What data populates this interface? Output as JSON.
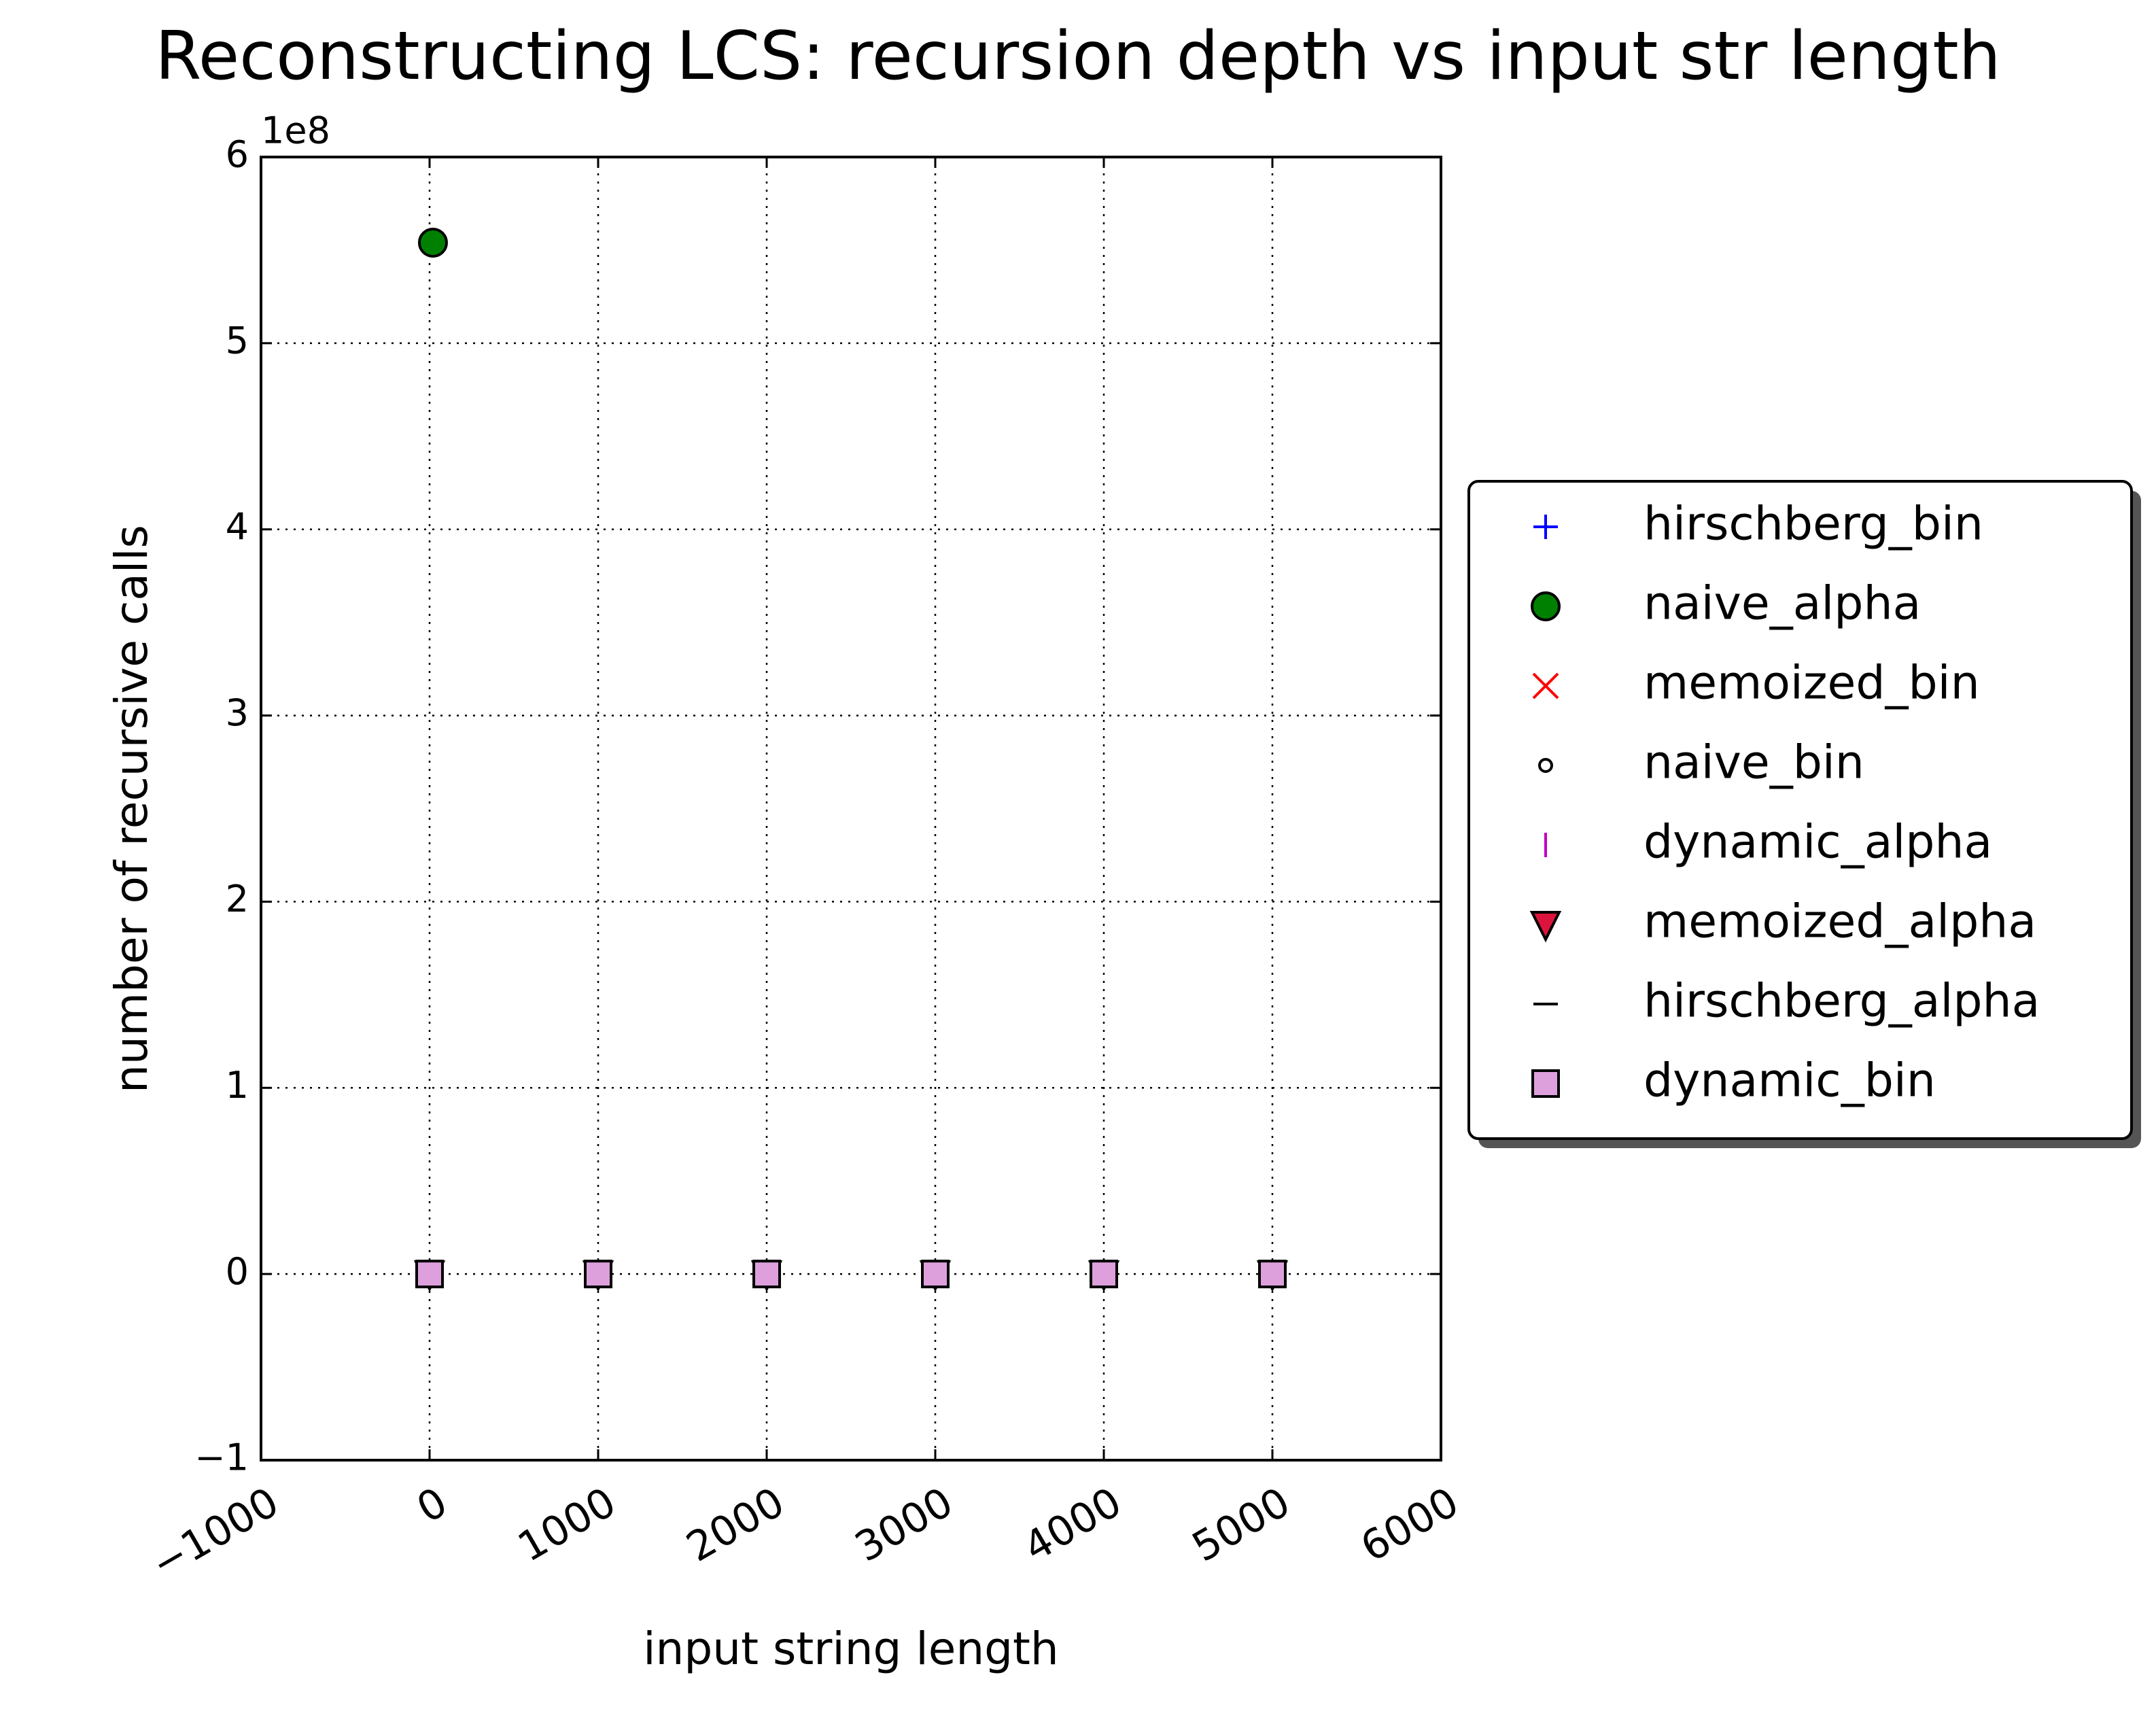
{
  "chart_data": {
    "type": "scatter",
    "title": "Reconstructing LCS: recursion depth vs input str length",
    "x_label": "input string length",
    "y_label": "number of recursive calls",
    "y_offset_label": "1e8",
    "xlim": [
      -1000,
      6000
    ],
    "ylim": [
      -1,
      6
    ],
    "xticks": [
      {
        "value": -1000,
        "label": "−1000"
      },
      0,
      1000,
      2000,
      3000,
      4000,
      5000,
      6000
    ],
    "yticks": [
      {
        "value": -1,
        "label": "−1"
      },
      0,
      1,
      2,
      3,
      4,
      5,
      6
    ],
    "grid": true,
    "legend": "right",
    "series": [
      {
        "name": "hirschberg_bin",
        "color": "#0000ff",
        "marker": "plus",
        "x": [
          0,
          1000,
          2000,
          3000,
          4000,
          5000
        ],
        "values": [
          0,
          0,
          0,
          0,
          0,
          0
        ]
      },
      {
        "name": "naive_alpha",
        "color": "#008000",
        "marker": "circle",
        "x": [
          20
        ],
        "values": [
          5.54
        ]
      },
      {
        "name": "memoized_bin",
        "color": "#ff0000",
        "marker": "x",
        "x": [
          0,
          1000,
          2000,
          3000,
          4000,
          5000
        ],
        "values": [
          0,
          0,
          0,
          0,
          0,
          0
        ]
      },
      {
        "name": "naive_bin",
        "color": "#ffffff",
        "marker": "small-circle",
        "x": [
          20
        ],
        "values": [
          0
        ]
      },
      {
        "name": "dynamic_alpha",
        "color": "#bf00bf",
        "marker": "vline",
        "x": [
          0,
          1000,
          2000,
          3000,
          4000,
          5000
        ],
        "values": [
          0,
          0,
          0,
          0,
          0,
          0
        ]
      },
      {
        "name": "memoized_alpha",
        "color": "#dc143c",
        "marker": "triangle-down",
        "x": [
          0,
          1000,
          2000,
          3000,
          4000,
          5000
        ],
        "values": [
          0,
          0,
          0,
          0,
          0,
          0
        ]
      },
      {
        "name": "hirschberg_alpha",
        "color": "#000000",
        "marker": "hline",
        "x": [
          0,
          1000,
          2000,
          3000,
          4000,
          5000
        ],
        "values": [
          0,
          0,
          0,
          0,
          0,
          0
        ]
      },
      {
        "name": "dynamic_bin",
        "color": "#dda0dd",
        "marker": "square",
        "x": [
          0,
          1000,
          2000,
          3000,
          4000,
          5000
        ],
        "values": [
          0,
          0,
          0,
          0,
          0,
          0
        ]
      }
    ]
  }
}
